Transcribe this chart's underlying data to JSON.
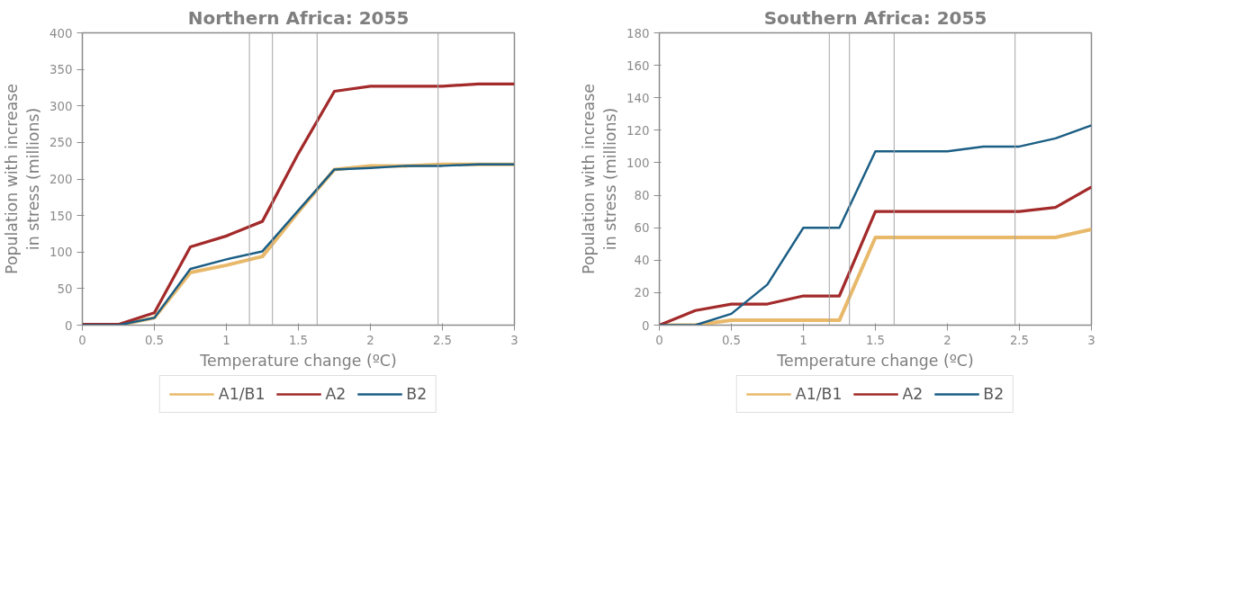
{
  "chart_data": [
    {
      "type": "line",
      "title": "Northern Africa: 2055",
      "xlabel": "Temperature change (ºC)",
      "ylabel": "Population with increase in stress (millions)",
      "x": [
        0,
        0.25,
        0.5,
        0.75,
        1,
        1.25,
        1.5,
        1.75,
        2,
        2.25,
        2.5,
        2.75,
        3
      ],
      "xlim": [
        0,
        3
      ],
      "xticks": [
        0,
        0.5,
        1,
        1.5,
        2,
        2.5,
        3
      ],
      "ylim": [
        0,
        400
      ],
      "yticks": [
        0,
        50,
        100,
        150,
        200,
        250,
        300,
        350,
        400
      ],
      "grid": false,
      "legend": "bottom",
      "marker": "none",
      "line_style": "solid",
      "ref_lines": [
        {
          "axis": "x",
          "value": 1.16,
          "label": null,
          "color": "#a6a6a6"
        },
        {
          "axis": "x",
          "value": 1.32,
          "label": null,
          "color": "#a6a6a6"
        },
        {
          "axis": "x",
          "value": 1.63,
          "label": null,
          "color": "#a6a6a6"
        },
        {
          "axis": "x",
          "value": 2.47,
          "label": null,
          "color": "#a6a6a6"
        }
      ],
      "series": [
        {
          "name": "A1/B1",
          "color": "#e8b96a",
          "values": [
            0,
            0,
            10,
            72,
            82,
            94,
            155,
            213,
            218,
            218,
            220,
            220,
            220
          ]
        },
        {
          "name": "A2",
          "color": "#a32a2a",
          "values": [
            1,
            1,
            17,
            107,
            122,
            142,
            235,
            320,
            327,
            327,
            327,
            330,
            330
          ]
        },
        {
          "name": "B2",
          "color": "#1b5e85",
          "values": [
            0,
            0,
            10,
            77,
            90,
            101,
            157,
            213,
            215,
            218,
            218,
            220,
            220
          ]
        }
      ]
    },
    {
      "type": "line",
      "title": "Southern Africa: 2055",
      "xlabel": "Temperature change (ºC)",
      "ylabel": "Population with increase in stress (millions)",
      "x": [
        0,
        0.25,
        0.5,
        0.75,
        1,
        1.25,
        1.5,
        1.75,
        2,
        2.25,
        2.5,
        2.75,
        3
      ],
      "xlim": [
        0,
        3
      ],
      "xticks": [
        0,
        0.5,
        1,
        1.5,
        2,
        2.5,
        3
      ],
      "ylim": [
        0,
        180
      ],
      "yticks": [
        0,
        20,
        40,
        60,
        80,
        100,
        120,
        140,
        160,
        180
      ],
      "grid": false,
      "legend": "bottom",
      "marker": "none",
      "line_style": "solid",
      "ref_lines": [
        {
          "axis": "x",
          "value": 1.18,
          "label": null,
          "color": "#a6a6a6"
        },
        {
          "axis": "x",
          "value": 1.32,
          "label": null,
          "color": "#a6a6a6"
        },
        {
          "axis": "x",
          "value": 1.63,
          "label": null,
          "color": "#a6a6a6"
        },
        {
          "axis": "x",
          "value": 2.47,
          "label": null,
          "color": "#a6a6a6"
        }
      ],
      "series": [
        {
          "name": "A1/B1",
          "color": "#e8b96a",
          "values": [
            0,
            0,
            3,
            3,
            3,
            3,
            54,
            54,
            54,
            54,
            54,
            54,
            59
          ]
        },
        {
          "name": "A2",
          "color": "#a32a2a",
          "values": [
            0,
            9,
            13,
            13,
            18,
            18,
            70,
            70,
            70,
            70,
            70,
            72.5,
            85
          ]
        },
        {
          "name": "B2",
          "color": "#1b5e85",
          "values": [
            0,
            0,
            7,
            25,
            60,
            60,
            107,
            107,
            107,
            110,
            110,
            115,
            123
          ]
        }
      ]
    }
  ]
}
